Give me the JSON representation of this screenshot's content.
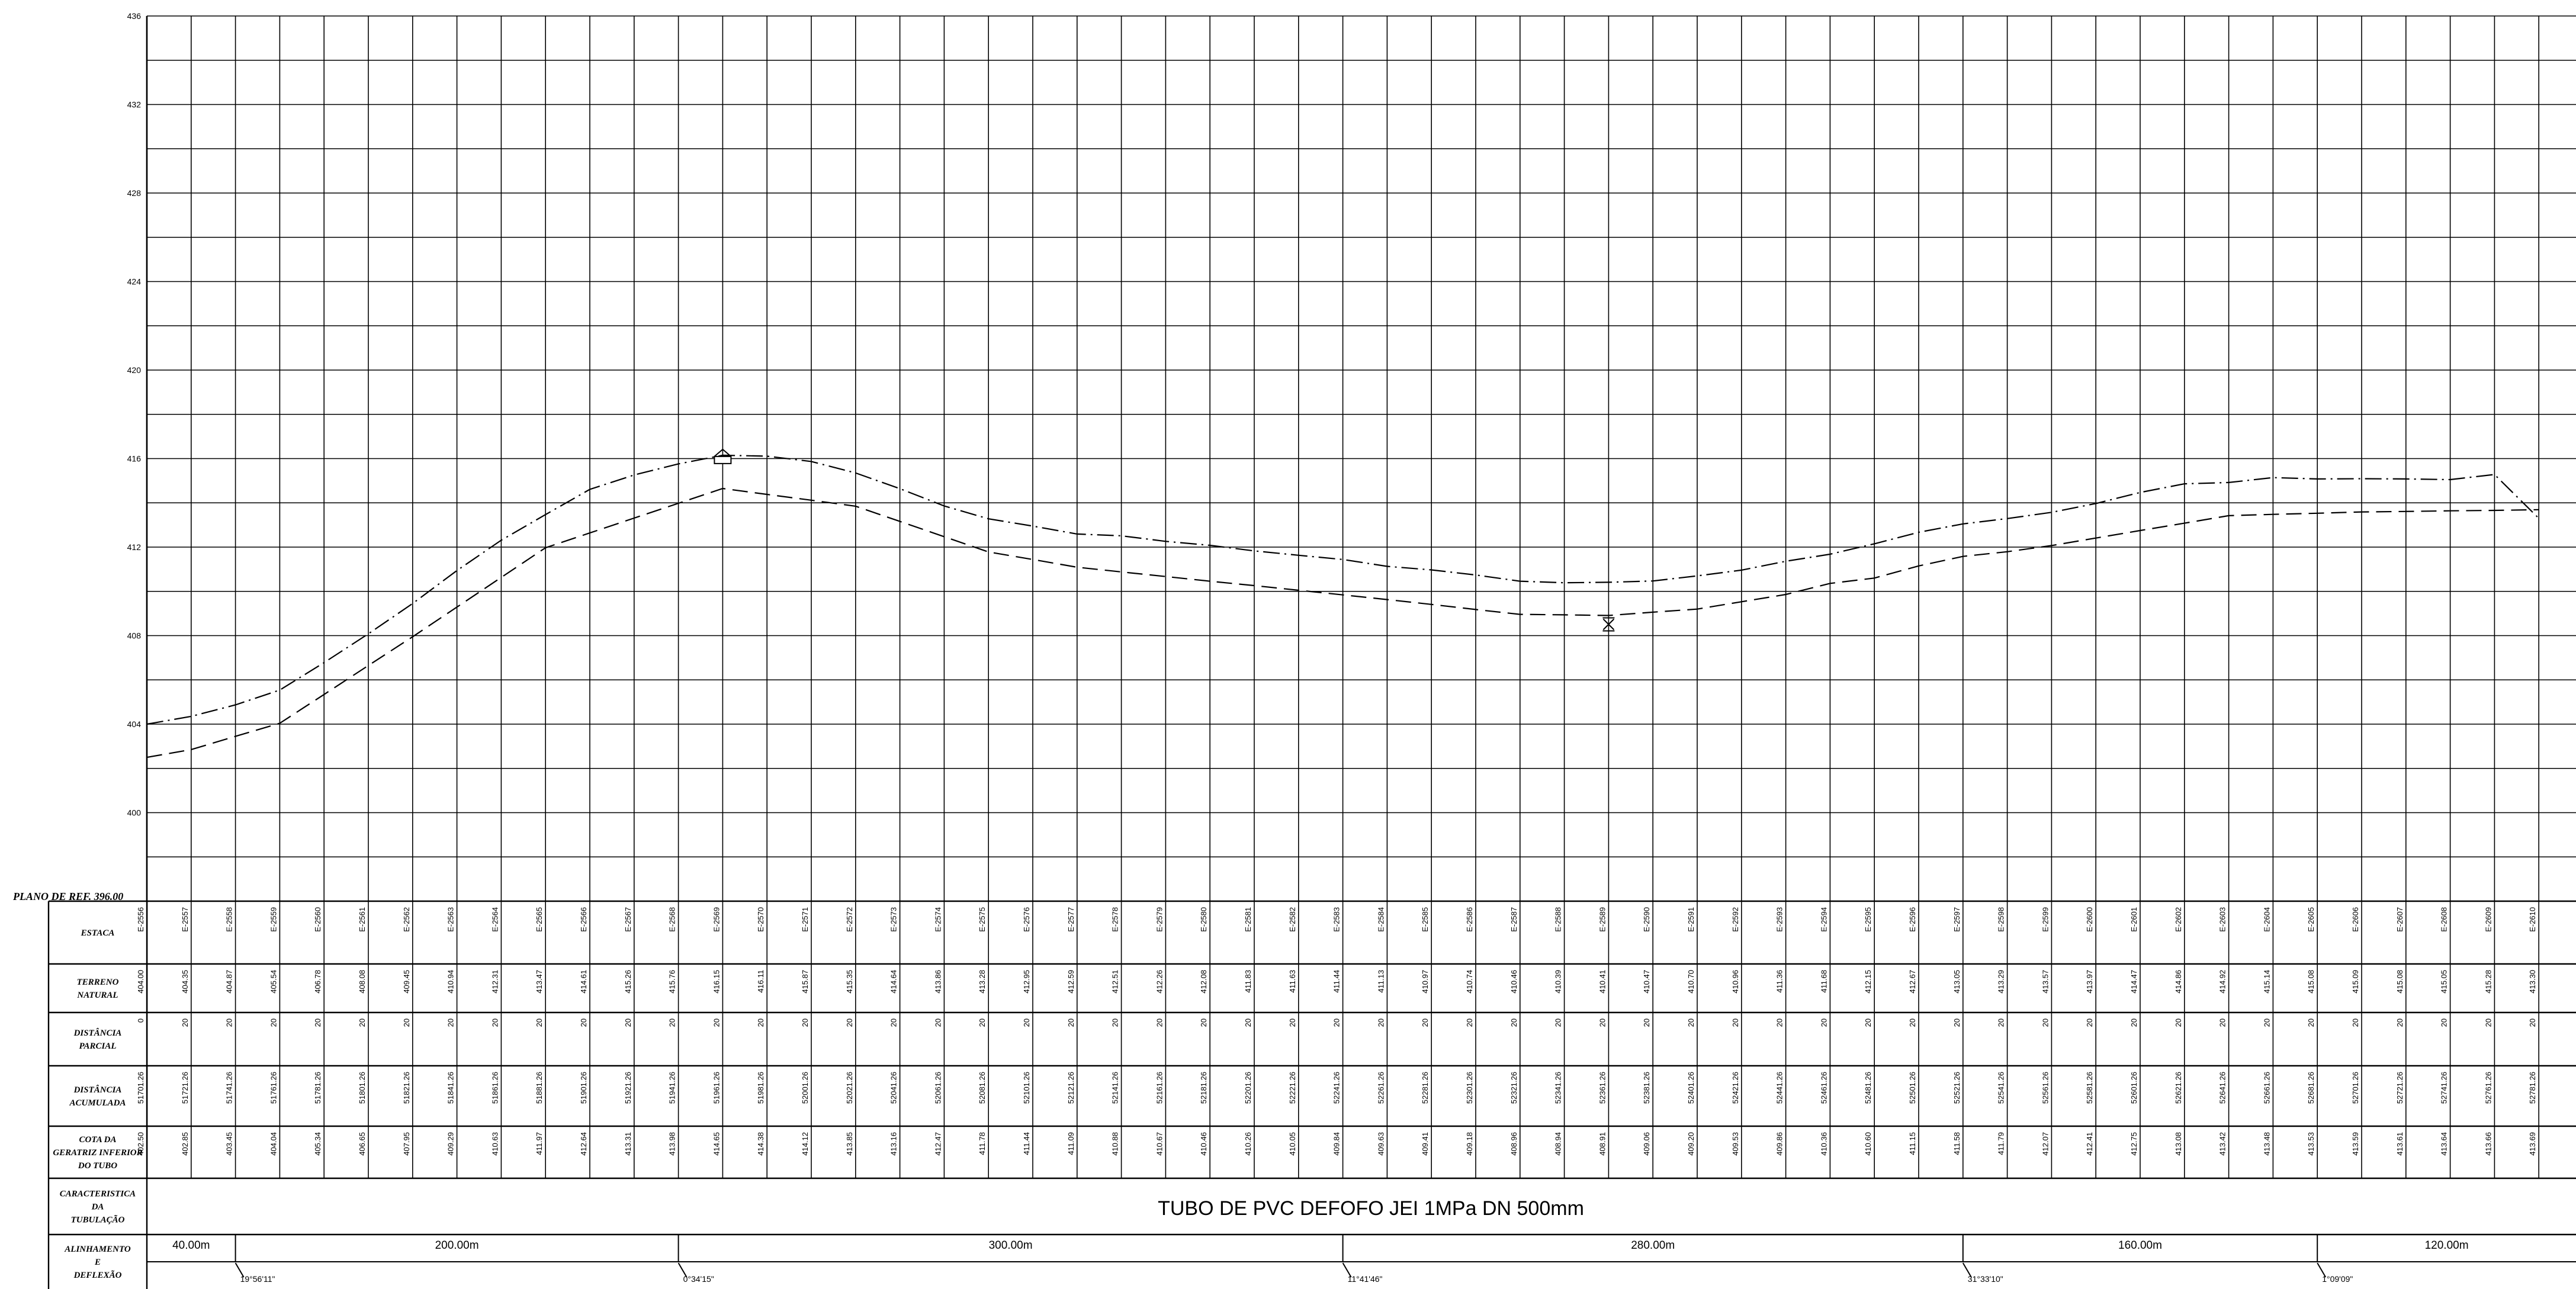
{
  "chart_data": {
    "type": "line",
    "ylim": [
      396,
      436
    ],
    "y_ticks": [
      400,
      404,
      408,
      412,
      416,
      420,
      424,
      428,
      432,
      436
    ],
    "reference_plane": "PLANO  DE  REF.  396.00",
    "row_labels": {
      "estaca": [
        "ESTACA"
      ],
      "terreno": [
        "TERRENO",
        "NATURAL"
      ],
      "parcial": [
        "DISTÂNCIA",
        "PARCIAL"
      ],
      "acumulada": [
        "DISTÂNCIA",
        "ACUMULADA"
      ],
      "cota": [
        "COTA  DA",
        "GERATRIZ  INFERIOR",
        "DO  TUBO"
      ],
      "carac": [
        "CARACTERISTICA",
        "DA",
        "TUBULAÇÃO"
      ],
      "alinhamento": [
        "ALINHAMENTO",
        "E",
        "DEFLEXÃO"
      ]
    },
    "stations": [
      "E-2556",
      "E-2557",
      "E-2558",
      "E-2559",
      "E-2560",
      "E-2561",
      "E-2562",
      "E-2563",
      "E-2564",
      "E-2565",
      "E-2566",
      "E-2567",
      "E-2568",
      "E-2569",
      "E-2570",
      "E-2571",
      "E-2572",
      "E-2573",
      "E-2574",
      "E-2575",
      "E-2576",
      "E-2577",
      "E-2578",
      "E-2579",
      "E-2580",
      "E-2581",
      "E-2582",
      "E-2583",
      "E-2584",
      "E-2585",
      "E-2586",
      "E-2587",
      "E-2588",
      "E-2589",
      "E-2590",
      "E-2591",
      "E-2592",
      "E-2593",
      "E-2594",
      "E-2595",
      "E-2596",
      "E-2597",
      "E-2598",
      "E-2599",
      "E-2600",
      "E-2601",
      "E-2602",
      "E-2603",
      "E-2604",
      "E-2605",
      "E-2606",
      "E-2607",
      "E-2608",
      "E-2609",
      "E-2610"
    ],
    "terreno_natural": [
      "404.00",
      "404.35",
      "404.87",
      "405.54",
      "406.78",
      "408.08",
      "409.45",
      "410.94",
      "412.31",
      "413.47",
      "414.61",
      "415.26",
      "415.76",
      "416.15",
      "416.11",
      "415.87",
      "415.35",
      "414.64",
      "413.86",
      "413.28",
      "412.95",
      "412.59",
      "412.51",
      "412.26",
      "412.08",
      "411.83",
      "411.63",
      "411.44",
      "411.13",
      "410.97",
      "410.74",
      "410.46",
      "410.39",
      "410.41",
      "410.47",
      "410.70",
      "410.96",
      "411.36",
      "411.68",
      "412.15",
      "412.67",
      "413.05",
      "413.29",
      "413.57",
      "413.97",
      "414.47",
      "414.86",
      "414.92",
      "415.14",
      "415.08",
      "415.09",
      "415.08",
      "415.05",
      "415.28",
      "413.30"
    ],
    "distancia_parcial": [
      "0",
      "20",
      "20",
      "20",
      "20",
      "20",
      "20",
      "20",
      "20",
      "20",
      "20",
      "20",
      "20",
      "20",
      "20",
      "20",
      "20",
      "20",
      "20",
      "20",
      "20",
      "20",
      "20",
      "20",
      "20",
      "20",
      "20",
      "20",
      "20",
      "20",
      "20",
      "20",
      "20",
      "20",
      "20",
      "20",
      "20",
      "20",
      "20",
      "20",
      "20",
      "20",
      "20",
      "20",
      "20",
      "20",
      "20",
      "20",
      "20",
      "20",
      "20",
      "20",
      "20",
      "20",
      "20"
    ],
    "distancia_acumulada": [
      "51701.26",
      "51721.26",
      "51741.26",
      "51761.26",
      "51781.26",
      "51801.26",
      "51821.26",
      "51841.26",
      "51861.26",
      "51881.26",
      "51901.26",
      "51921.26",
      "51941.26",
      "51961.26",
      "51981.26",
      "52001.26",
      "52021.26",
      "52041.26",
      "52061.26",
      "52081.26",
      "52101.26",
      "52121.26",
      "52141.26",
      "52161.26",
      "52181.26",
      "52201.26",
      "52221.26",
      "52241.26",
      "52261.26",
      "52281.26",
      "52301.26",
      "52321.26",
      "52341.26",
      "52361.26",
      "52381.26",
      "52401.26",
      "52421.26",
      "52441.26",
      "52461.26",
      "52481.26",
      "52501.26",
      "52521.26",
      "52541.26",
      "52561.26",
      "52581.26",
      "52601.26",
      "52621.26",
      "52641.26",
      "52661.26",
      "52681.26",
      "52701.26",
      "52721.26",
      "52741.26",
      "52761.26",
      "52781.26"
    ],
    "cota_geratriz": [
      "402.50",
      "402.85",
      "403.45",
      "404.04",
      "405.34",
      "406.65",
      "407.95",
      "409.29",
      "410.63",
      "411.97",
      "412.64",
      "413.31",
      "413.98",
      "414.65",
      "414.38",
      "414.12",
      "413.85",
      "413.16",
      "412.47",
      "411.78",
      "411.44",
      "411.09",
      "410.88",
      "410.67",
      "410.46",
      "410.26",
      "410.05",
      "409.84",
      "409.63",
      "409.41",
      "409.18",
      "408.96",
      "408.94",
      "408.91",
      "409.06",
      "409.20",
      "409.53",
      "409.86",
      "410.36",
      "410.60",
      "411.15",
      "411.58",
      "411.79",
      "412.07",
      "412.41",
      "412.75",
      "413.08",
      "413.42",
      "413.48",
      "413.53",
      "413.59",
      "413.61",
      "413.64",
      "413.66",
      "413.69"
    ],
    "characteristic": "TUBO DE PVC DEFOFO JEI 1MPa DN 500mm",
    "alignments": [
      {
        "length": "40.00m",
        "deflection": "",
        "from": 0,
        "to": 2
      },
      {
        "length": "200.00m",
        "deflection": "19°56'11\"",
        "from": 2,
        "to": 12
      },
      {
        "length": "300.00m",
        "deflection": "0°34'15\"",
        "from": 12,
        "to": 27
      },
      {
        "length": "280.00m",
        "deflection": "11°41'46\"",
        "from": 27,
        "to": 41
      },
      {
        "length": "160.00m",
        "deflection": "31°33'10\"",
        "from": 41,
        "to": 49
      },
      {
        "length": "120.00m",
        "deflection": "1°09'09\"",
        "from": 49,
        "to": 55
      }
    ],
    "markers": [
      {
        "type": "high-point-vent",
        "station": 13
      },
      {
        "type": "low-point-drain",
        "station": 33
      }
    ]
  }
}
